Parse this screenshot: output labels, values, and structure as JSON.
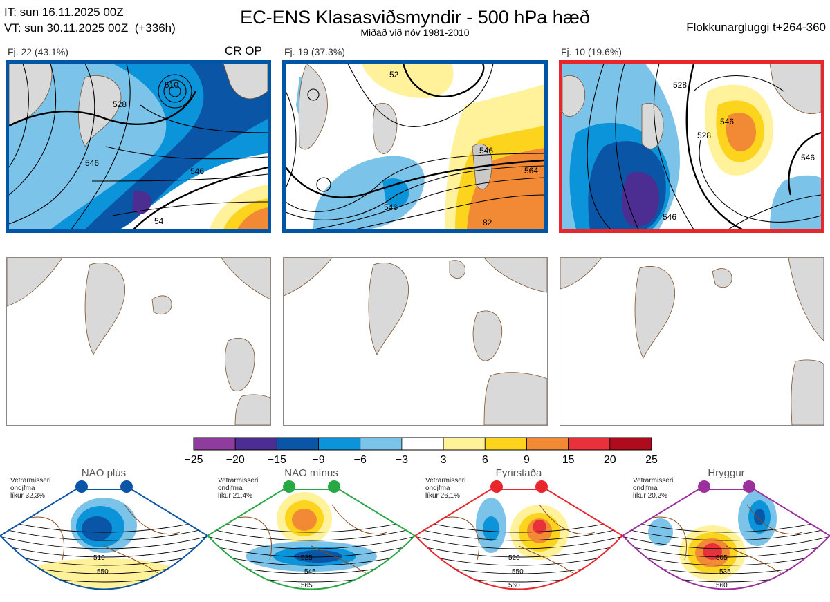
{
  "header": {
    "init_line": "IT: sun 16.11.2025 00Z",
    "valid_line": "VT: sun 30.11.2025 00Z  (+336h)",
    "title": "EC-ENS Klasasviðsmyndir - 500 hPa hæð",
    "subtitle": "Miðað við nóv 1981-2010",
    "cluster_window": "Flokkunargluggi t+264-360"
  },
  "clusters": [
    {
      "label": "Fj. 22 (43.1%)",
      "tag": "CR OP",
      "frame_color": "#0055a4",
      "contours": [
        "510",
        "528",
        "546",
        "546",
        "54"
      ]
    },
    {
      "label": "Fj. 19 (37.3%)",
      "tag": "",
      "frame_color": "#0055a4",
      "contours": [
        "52",
        "546",
        "564",
        "546",
        "82"
      ]
    },
    {
      "label": "Fj. 10 (19.6%)",
      "tag": "",
      "frame_color": "#e8262c",
      "contours": [
        "528",
        "546",
        "528",
        "546",
        "546"
      ]
    }
  ],
  "colorbar": {
    "ticks": [
      "−25",
      "−20",
      "−15",
      "−9",
      "−6",
      "−3",
      "3",
      "6",
      "9",
      "15",
      "20",
      "25"
    ],
    "colors": [
      "#8e3c9d",
      "#4c2d91",
      "#0a55a5",
      "#0b94d9",
      "#7cc3ea",
      "#ffffff",
      "#fff29a",
      "#fcd41e",
      "#f28a35",
      "#e8313a",
      "#b00b1c"
    ]
  },
  "regimes": [
    {
      "name": "NAO plús",
      "info": "Vetrarmisseri\nondjfma\nlíkur 32,3%",
      "color": "#0a55a5",
      "contours": [
        "510",
        "550"
      ]
    },
    {
      "name": "NAO mínus",
      "info": "Vetrarmisseri\nondjfma\nlíkur 21,4%",
      "color": "#28a745",
      "contours": [
        "525",
        "545",
        "565"
      ]
    },
    {
      "name": "Fyrirstaða",
      "info": "Vetrarmisseri\nondjfma\nlíkur 26,1%",
      "color": "#e8262c",
      "contours": [
        "520",
        "550",
        "560"
      ]
    },
    {
      "name": "Hryggur",
      "info": "Vetrarmisseri\nondjfma\nlíkur 20,2%",
      "color": "#9b2f9b",
      "contours": [
        "505",
        "535",
        "560"
      ]
    }
  ]
}
